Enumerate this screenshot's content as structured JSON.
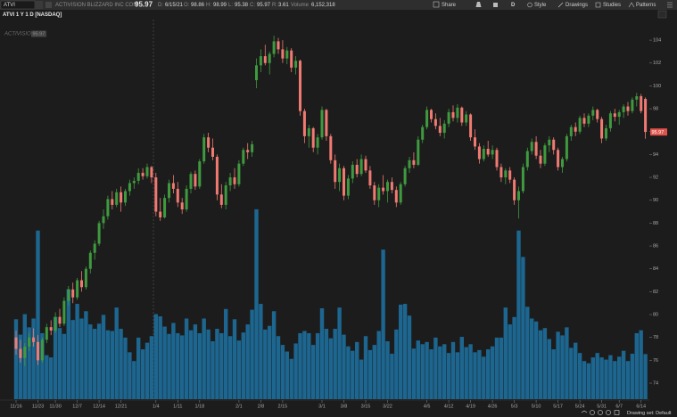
{
  "header": {
    "symbol": "ATVI",
    "company": "ACTIVISION BLIZZARD INC COM",
    "date_label": "D:",
    "date": "6/15/21",
    "open_label": "O:",
    "high_label": "H:",
    "low_label": "L:",
    "close_label": "C:",
    "range_label": "R:",
    "range": "3.61",
    "volume_label": "Volume",
    "volume": "6,152,318"
  },
  "toolbar": {
    "share": "Share",
    "interval": "D",
    "style": "Style",
    "drawings": "Drawings",
    "studies": "Studies",
    "patterns": "Patterns"
  },
  "watermark": "ACTIVISION",
  "drawing_set": "Drawing set: Default",
  "chart_data": {
    "type": "candlestick",
    "title": "ATVI 1 Y 1 D [NASDAQ]",
    "categories": [
      "11/16",
      null,
      null,
      null,
      null,
      "11/23",
      null,
      null,
      null,
      "11/30",
      null,
      null,
      null,
      null,
      "12/7",
      null,
      null,
      null,
      null,
      "12/14",
      null,
      null,
      null,
      null,
      "12/21",
      null,
      null,
      null,
      null,
      null,
      null,
      null,
      "1/4",
      null,
      null,
      null,
      null,
      "1/11",
      null,
      null,
      null,
      null,
      "1/18",
      null,
      null,
      null,
      null,
      null,
      null,
      null,
      null,
      "2/1",
      null,
      null,
      null,
      null,
      "2/8",
      null,
      null,
      null,
      null,
      "2/15",
      null,
      null,
      null,
      null,
      null,
      null,
      null,
      null,
      "3/1",
      null,
      null,
      null,
      null,
      "3/8",
      null,
      null,
      null,
      null,
      "3/15",
      null,
      null,
      null,
      null,
      "3/22",
      null,
      null,
      null,
      null,
      null,
      null,
      null,
      null,
      "4/5",
      null,
      null,
      null,
      null,
      "4/12",
      null,
      null,
      null,
      null,
      "4/19",
      null,
      null,
      null,
      null,
      "4/26",
      null,
      null,
      null,
      null,
      "5/3",
      null,
      null,
      null,
      null,
      "5/10",
      null,
      null,
      null,
      null,
      "5/17",
      null,
      null,
      null,
      null,
      "5/24",
      null,
      null,
      null,
      null,
      "5/31",
      null,
      null,
      null,
      "6/7",
      null,
      null,
      null,
      null,
      "6/14",
      null
    ],
    "open": [
      78.0,
      77.0,
      76.2,
      77.2,
      78.0,
      77.6,
      76.0,
      77.8,
      78.9,
      78.6,
      79.8,
      79.2,
      81.2,
      82.2,
      81.5,
      83.0,
      82.4,
      84.0,
      85.4,
      86.2,
      88.0,
      88.6,
      90.1,
      89.6,
      90.7,
      89.8,
      90.8,
      91.5,
      91.7,
      92.4,
      92.1,
      92.9,
      92.0,
      89.0,
      88.5,
      90.2,
      91.5,
      91.0,
      89.8,
      89.2,
      91.0,
      92.3,
      91.2,
      93.4,
      95.5,
      94.6,
      93.8,
      90.5,
      89.6,
      91.3,
      92.0,
      91.4,
      93.2,
      94.4,
      94.2,
      100.5,
      101.8,
      102.6,
      102.0,
      102.8,
      103.9,
      103.2,
      102.4,
      103.1,
      101.6,
      102.2,
      97.8,
      95.6,
      96.3,
      94.6,
      95.5,
      97.9,
      95.6,
      93.5,
      91.6,
      92.8,
      90.4,
      91.9,
      93.1,
      92.3,
      93.6,
      92.6,
      91.3,
      90.0,
      91.1,
      90.8,
      91.6,
      90.9,
      89.8,
      91.4,
      92.8,
      93.5,
      93.1,
      95.3,
      96.4,
      97.9,
      97.1,
      96.5,
      95.9,
      96.7,
      97.7,
      97.2,
      98.1,
      96.8,
      97.5,
      95.5,
      94.7,
      93.6,
      94.5,
      94.0,
      94.4,
      92.9,
      92.0,
      92.6,
      91.8,
      90.0,
      90.8,
      92.9,
      94.3,
      95.1,
      93.9,
      93.2,
      94.8,
      95.3,
      94.4,
      92.9,
      93.6,
      95.6,
      96.4,
      96.0,
      97.2,
      96.7,
      97.4,
      97.9,
      97.1,
      95.4,
      96.3,
      97.6,
      97.3,
      97.7,
      98.2,
      97.8,
      98.8,
      99.1,
      98.86
    ],
    "high": [
      78.6,
      77.8,
      77.5,
      78.4,
      78.8,
      78.2,
      78.0,
      79.2,
      79.5,
      80.2,
      80.5,
      81.5,
      82.5,
      82.8,
      83.2,
      83.8,
      84.2,
      85.6,
      86.5,
      88.2,
      89.2,
      90.4,
      90.8,
      91.0,
      91.2,
      91.0,
      91.8,
      92.0,
      92.8,
      92.8,
      93.2,
      93.0,
      92.4,
      90.2,
      90.5,
      91.8,
      92.2,
      91.6,
      90.2,
      91.3,
      92.5,
      92.6,
      93.6,
      95.8,
      95.9,
      95.4,
      94.0,
      91.4,
      91.6,
      92.4,
      92.8,
      93.5,
      94.6,
      95.0,
      95.2,
      102.4,
      103.2,
      103.6,
      103.0,
      104.4,
      104.2,
      104.0,
      103.4,
      103.3,
      102.6,
      102.3,
      98.0,
      96.6,
      96.4,
      95.8,
      98.2,
      98.0,
      95.8,
      94.0,
      93.2,
      93.0,
      92.2,
      93.4,
      93.6,
      94.0,
      93.9,
      93.0,
      91.6,
      91.4,
      92.2,
      91.8,
      92.0,
      91.2,
      91.6,
      93.0,
      93.8,
      94.2,
      95.6,
      96.6,
      98.2,
      98.0,
      97.6,
      97.2,
      97.0,
      98.0,
      98.3,
      98.4,
      98.2,
      97.8,
      97.6,
      96.2,
      95.0,
      94.8,
      95.2,
      94.8,
      94.6,
      93.2,
      92.8,
      92.9,
      92.0,
      91.2,
      93.2,
      94.6,
      95.4,
      95.6,
      94.4,
      95.0,
      95.6,
      95.5,
      94.6,
      93.8,
      95.8,
      96.6,
      96.8,
      97.4,
      97.6,
      97.6,
      98.2,
      98.0,
      97.3,
      96.6,
      97.8,
      98.0,
      97.9,
      98.4,
      98.6,
      99.0,
      99.4,
      99.3,
      98.99
    ],
    "low": [
      76.5,
      75.8,
      75.5,
      76.8,
      77.2,
      75.6,
      75.8,
      77.5,
      78.2,
      78.4,
      78.9,
      79.0,
      80.8,
      81.0,
      81.3,
      82.0,
      82.2,
      83.6,
      84.8,
      86.0,
      87.5,
      88.3,
      89.2,
      89.4,
      89.0,
      89.5,
      90.4,
      91.0,
      91.4,
      91.8,
      91.9,
      91.5,
      88.6,
      88.2,
      88.4,
      89.8,
      90.6,
      89.4,
      88.8,
      89.0,
      90.6,
      90.9,
      91.0,
      93.2,
      94.2,
      93.5,
      90.0,
      89.3,
      89.2,
      90.8,
      91.0,
      91.2,
      93.0,
      93.6,
      93.8,
      99.8,
      101.2,
      101.8,
      101.0,
      102.5,
      102.8,
      102.0,
      101.9,
      101.2,
      101.0,
      97.4,
      95.0,
      94.6,
      94.2,
      94.0,
      95.3,
      95.2,
      93.2,
      91.0,
      90.8,
      90.0,
      90.1,
      91.5,
      92.0,
      92.1,
      92.4,
      91.0,
      89.6,
      89.4,
      90.5,
      89.8,
      90.6,
      89.4,
      89.6,
      91.2,
      92.4,
      92.8,
      93.0,
      95.0,
      96.2,
      96.8,
      96.2,
      95.6,
      95.4,
      96.4,
      96.9,
      96.8,
      96.5,
      96.5,
      95.2,
      94.4,
      93.2,
      93.4,
      93.8,
      93.6,
      92.6,
      91.6,
      91.4,
      91.5,
      89.6,
      88.4,
      90.6,
      92.6,
      94.0,
      93.6,
      92.8,
      93.0,
      94.2,
      94.0,
      92.6,
      92.4,
      93.4,
      95.2,
      95.6,
      95.8,
      96.4,
      96.4,
      97.0,
      96.8,
      95.0,
      95.2,
      96.0,
      96.9,
      96.6,
      97.2,
      97.4,
      97.6,
      98.2,
      97.6,
      95.38
    ],
    "close": [
      77.0,
      76.2,
      77.2,
      78.0,
      77.6,
      76.0,
      77.8,
      78.9,
      78.6,
      79.8,
      79.2,
      81.2,
      82.2,
      81.5,
      83.0,
      82.4,
      84.0,
      85.4,
      86.2,
      88.0,
      88.6,
      90.1,
      89.6,
      90.7,
      89.8,
      90.8,
      91.5,
      91.7,
      92.4,
      92.1,
      92.9,
      92.0,
      89.0,
      88.5,
      90.2,
      91.5,
      91.0,
      89.8,
      89.2,
      91.0,
      92.3,
      91.2,
      93.4,
      95.5,
      94.6,
      93.8,
      90.5,
      89.6,
      91.3,
      92.0,
      91.4,
      93.2,
      94.4,
      94.2,
      94.9,
      101.8,
      102.6,
      102.0,
      102.8,
      103.9,
      103.2,
      102.4,
      103.1,
      101.6,
      102.2,
      97.8,
      95.6,
      96.3,
      94.6,
      95.5,
      97.9,
      95.6,
      93.5,
      91.6,
      92.8,
      90.4,
      91.9,
      93.1,
      92.3,
      93.6,
      92.6,
      91.3,
      90.0,
      91.1,
      90.8,
      91.6,
      90.9,
      89.8,
      91.4,
      92.8,
      93.5,
      93.1,
      95.3,
      96.4,
      97.9,
      97.1,
      96.5,
      95.9,
      96.7,
      97.7,
      97.2,
      98.1,
      96.8,
      97.5,
      95.5,
      94.7,
      93.6,
      94.5,
      94.0,
      94.4,
      92.9,
      92.0,
      92.6,
      91.8,
      90.0,
      90.8,
      92.9,
      94.3,
      95.1,
      93.9,
      93.2,
      94.8,
      95.3,
      94.4,
      92.9,
      93.6,
      95.6,
      96.4,
      96.0,
      97.2,
      96.7,
      97.4,
      97.9,
      97.1,
      95.4,
      96.3,
      97.6,
      97.3,
      97.7,
      98.2,
      97.8,
      98.8,
      99.1,
      97.8,
      95.97
    ],
    "volume": [
      10900000,
      8800000,
      11600000,
      9800000,
      11000000,
      23000000,
      9000000,
      6000000,
      5700000,
      11200000,
      9700000,
      8900000,
      15000000,
      10800000,
      13000000,
      11000000,
      12000000,
      10200000,
      9600000,
      10300000,
      11500000,
      9400000,
      9300000,
      12500000,
      9600000,
      8400000,
      6400000,
      5200000,
      8400000,
      6800000,
      7700000,
      8600000,
      11600000,
      11300000,
      9900000,
      8900000,
      10400000,
      9000000,
      8700000,
      11000000,
      9400000,
      10200000,
      9000000,
      11000000,
      9500000,
      7900000,
      9600000,
      9000000,
      12300000,
      8600000,
      10900000,
      8000000,
      9100000,
      10200000,
      12200000,
      25900000,
      13000000,
      9500000,
      10000000,
      12000000,
      8600000,
      7400000,
      6500000,
      5500000,
      7600000,
      9000000,
      9300000,
      9000000,
      7400000,
      9000000,
      12400000,
      9600000,
      8300000,
      9600000,
      12500000,
      8800000,
      7200000,
      6600000,
      7800000,
      5400000,
      8600000,
      6700000,
      7400000,
      9300000,
      20400000,
      7900000,
      6200000,
      9500000,
      12900000,
      13000000,
      11400000,
      6900000,
      8000000,
      7500000,
      7800000,
      6800000,
      8400000,
      7200000,
      7500000,
      6300000,
      7800000,
      6400000,
      8500000,
      7100000,
      7500000,
      6400000,
      6700000,
      5800000,
      6800000,
      7200000,
      8400000,
      8400000,
      12500000,
      10200000,
      11200000,
      23000000,
      19400000,
      12600000,
      11000000,
      10600000,
      9400000,
      9700000,
      8200000,
      6800000,
      9200000,
      8700000,
      9800000,
      7000000,
      7700000,
      6300000,
      5200000,
      4900000,
      5700000,
      6300000,
      5700000,
      5400000,
      6000000,
      5200000,
      5800000,
      6600000,
      5200000,
      6200000,
      9000000,
      9400000,
      6152318
    ],
    "ylim": [
      72.6,
      105.8
    ],
    "yticks": [
      74,
      76,
      78,
      80,
      82,
      84,
      86,
      88,
      90,
      92,
      94,
      96,
      98,
      100,
      102,
      104
    ],
    "y2lim": [
      0,
      35000000
    ],
    "up_color": "#3f9a3f",
    "down_color": "#f07a72",
    "volume_color": "#1d6690",
    "last_price_color": "#e0524a",
    "grid": false
  }
}
